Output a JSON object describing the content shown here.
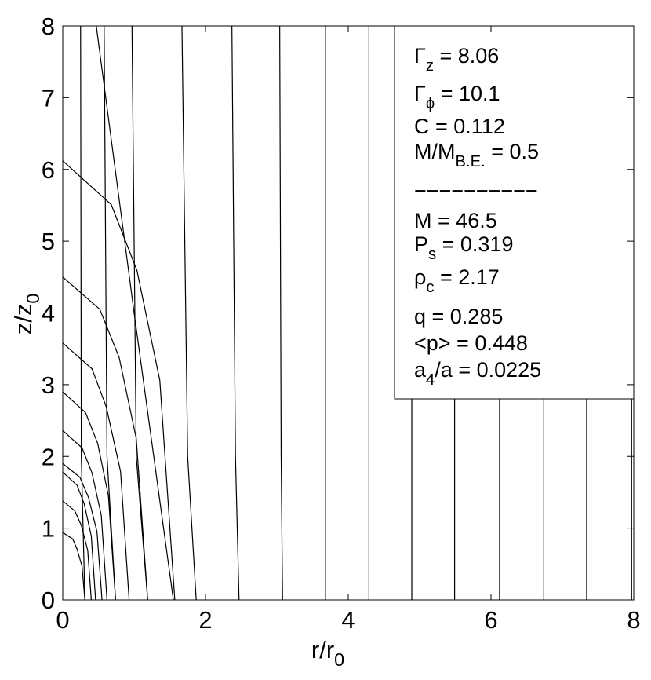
{
  "chart_data": {
    "type": "line",
    "xlabel": {
      "text": "r/r",
      "sub": "0"
    },
    "ylabel": {
      "text": "z/z",
      "sub": "0"
    },
    "xlim": [
      0,
      8
    ],
    "ylim": [
      0,
      8
    ],
    "xticks": [
      0,
      2,
      4,
      6,
      8
    ],
    "yticks": [
      0,
      1,
      2,
      3,
      4,
      5,
      6,
      7,
      8
    ],
    "color": "#000000",
    "series": [
      {
        "x": [
          0.31,
          0.27,
          0.2,
          0.14,
          0
        ],
        "y": [
          0,
          0.47,
          0.71,
          0.85,
          0.94
        ]
      },
      {
        "x": [
          0.4,
          0.35,
          0.26,
          0.17,
          0
        ],
        "y": [
          0,
          0.69,
          1.04,
          1.24,
          1.38
        ]
      },
      {
        "x": [
          0.46,
          0.4,
          0.3,
          0.2,
          0
        ],
        "y": [
          0,
          0.89,
          1.34,
          1.6,
          1.78
        ]
      },
      {
        "x": [
          0.55,
          0.48,
          0.36,
          0.24,
          0
        ],
        "y": [
          0,
          0.95,
          1.43,
          1.71,
          1.9
        ]
      },
      {
        "x": [
          0.62,
          0.54,
          0.41,
          0.27,
          0
        ],
        "y": [
          0,
          1.18,
          1.77,
          2.12,
          2.36
        ]
      },
      {
        "x": [
          0.74,
          0.64,
          0.49,
          0.32,
          0
        ],
        "y": [
          0,
          1.45,
          2.18,
          2.61,
          2.9
        ]
      },
      {
        "x": [
          0.93,
          0.81,
          0.61,
          0.41,
          0
        ],
        "y": [
          0,
          1.79,
          2.69,
          3.22,
          3.58
        ]
      },
      {
        "x": [
          1.19,
          1.03,
          0.79,
          0.52,
          0
        ],
        "y": [
          0,
          2.25,
          3.38,
          4.05,
          4.5
        ]
      },
      {
        "x": [
          1.57,
          1.36,
          1.04,
          0.68,
          0
        ],
        "y": [
          0,
          3.06,
          4.59,
          5.51,
          6.12
        ]
      },
      {
        "x": [
          0.47,
          1.0,
          1.55
        ],
        "y": [
          8,
          4,
          0
        ]
      },
      {
        "x": [
          0.25,
          0.26,
          0.31
        ],
        "y": [
          8,
          2,
          0
        ]
      },
      {
        "x": [
          0.58,
          0.62,
          0.74
        ],
        "y": [
          8,
          2,
          0
        ]
      },
      {
        "x": [
          0.97,
          1.03,
          1.19
        ],
        "y": [
          8,
          2,
          0
        ]
      },
      {
        "x": [
          1.67,
          1.75,
          1.87
        ],
        "y": [
          8,
          2,
          0
        ]
      },
      {
        "x": [
          2.37,
          2.42,
          2.47
        ],
        "y": [
          8,
          2,
          0
        ]
      },
      {
        "x": [
          3.04,
          3.06,
          3.08
        ],
        "y": [
          8,
          2,
          0
        ]
      },
      {
        "x": [
          3.68,
          3.68
        ],
        "y": [
          8,
          0
        ]
      },
      {
        "x": [
          4.29,
          4.29
        ],
        "y": [
          8,
          0
        ]
      },
      {
        "x": [
          4.89,
          4.89
        ],
        "y": [
          8,
          0
        ]
      },
      {
        "x": [
          5.49,
          5.49
        ],
        "y": [
          8,
          0
        ]
      },
      {
        "x": [
          6.12,
          6.12
        ],
        "y": [
          8,
          0
        ]
      },
      {
        "x": [
          6.74,
          6.74
        ],
        "y": [
          8,
          0
        ]
      },
      {
        "x": [
          7.34,
          7.34
        ],
        "y": [
          8,
          0
        ]
      },
      {
        "x": [
          7.97,
          7.97
        ],
        "y": [
          8,
          0
        ]
      }
    ],
    "annotations": [
      {
        "text": "Γ",
        "sub": "z",
        "after": " = 8.06"
      },
      {
        "text": "Γ",
        "sub": "ϕ",
        "after": " = 10.1"
      },
      {
        "text": "C = 0.112"
      },
      {
        "text": "M/M",
        "sub": "B.E.",
        "after": " = 0.5"
      },
      {
        "text": "−−−−−−−−−−"
      },
      {
        "text": "M = 46.5"
      },
      {
        "text": "P",
        "sub": "s",
        "after": " = 0.319"
      },
      {
        "text": "ρ",
        "sub": "c",
        "after": " = 2.17"
      },
      {
        "text": "q = 0.285"
      },
      {
        "text": "<p> = 0.448"
      },
      {
        "text": "a",
        "sub": "4",
        "after": "/a = 0.0225"
      }
    ]
  }
}
